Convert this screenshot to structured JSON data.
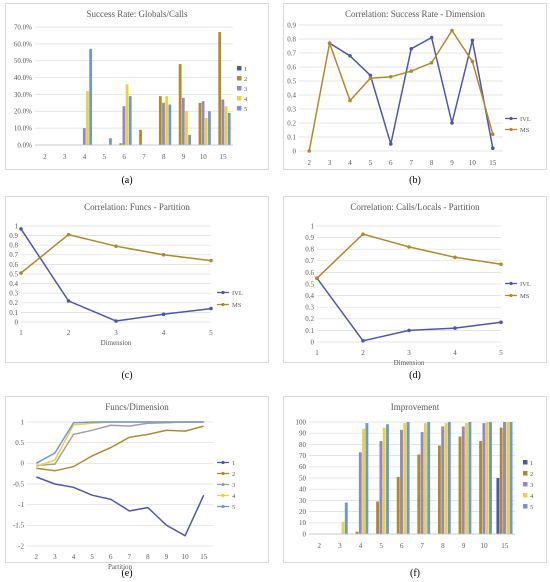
{
  "colors": {
    "s1": "#4f56b0",
    "s2": "#b08a2a",
    "s3": "#9487c4",
    "s4": "#e6d43a",
    "s5": "#6f96d6",
    "ivl": "#4f56b0",
    "ms": "#b08a2a",
    "lgreen": "#a8c26a",
    "cgray": "#a0a0a0"
  },
  "captions": [
    "(a)",
    "(b)",
    "(c)",
    "(d)",
    "(e)",
    "(f)"
  ],
  "chart_data": [
    {
      "id": "a",
      "type": "bar",
      "title": "Success Rate: Globals/Calls",
      "categories": [
        "2",
        "3",
        "4",
        "5",
        "6",
        "7",
        "8",
        "9",
        "10",
        "15"
      ],
      "ylim": [
        0,
        70
      ],
      "yticks": [
        "0.0%",
        "10.0%",
        "20.0%",
        "30.0%",
        "40.0%",
        "50.0%",
        "60.0%",
        "70.0%"
      ],
      "legend_position": "right",
      "series": [
        {
          "name": "1",
          "values": [
            0,
            0,
            0,
            0,
            0,
            0,
            0,
            0,
            0,
            0
          ]
        },
        {
          "name": "2",
          "values": [
            0,
            0,
            0,
            0,
            1,
            9,
            29,
            48,
            25,
            67
          ]
        },
        {
          "name": "3",
          "values": [
            0,
            0,
            10,
            0,
            23,
            0,
            25,
            28,
            26,
            27
          ]
        },
        {
          "name": "4",
          "values": [
            0,
            0,
            32,
            0,
            36,
            0,
            29,
            20,
            16,
            23
          ]
        },
        {
          "name": "5",
          "values": [
            0,
            0,
            57,
            4,
            29,
            0,
            24,
            6,
            20,
            19
          ]
        }
      ]
    },
    {
      "id": "b",
      "type": "line",
      "title": "Correlation: Success Rate - Dimension",
      "categories": [
        "2",
        "3",
        "4",
        "5",
        "6",
        "7",
        "8",
        "9",
        "10",
        "15"
      ],
      "ylim": [
        0,
        0.9
      ],
      "yticks": [
        "0",
        "0.1",
        "0.2",
        "0.3",
        "0.4",
        "0.5",
        "0.6",
        "0.7",
        "0.8",
        "0.9"
      ],
      "legend_position": "right",
      "series": [
        {
          "name": "IVL",
          "values": [
            null,
            0.77,
            0.68,
            0.54,
            0.05,
            0.73,
            0.81,
            0.2,
            0.79,
            0.02
          ]
        },
        {
          "name": "MS",
          "values": [
            0.0,
            0.77,
            0.36,
            0.52,
            0.53,
            0.57,
            0.63,
            0.86,
            0.64,
            0.12
          ]
        }
      ]
    },
    {
      "id": "c",
      "type": "line",
      "title": "Correlation: Funcs - Partition",
      "xlabel": "Dimension",
      "categories": [
        "1",
        "2",
        "3",
        "4",
        "5"
      ],
      "ylim": [
        0,
        1
      ],
      "yticks": [
        "0",
        "0.1",
        "0.2",
        "0.3",
        "0.4",
        "0.5",
        "0.6",
        "0.7",
        "0.8",
        "0.9",
        "1"
      ],
      "legend_position": "right",
      "series": [
        {
          "name": "IVL",
          "values": [
            0.97,
            0.22,
            0.01,
            0.08,
            0.14
          ]
        },
        {
          "name": "MS",
          "values": [
            0.51,
            0.91,
            0.79,
            0.7,
            0.64
          ]
        }
      ]
    },
    {
      "id": "d",
      "type": "line",
      "title": "Correlation: Calls/Locals - Partition",
      "xlabel": "Dimension",
      "categories": [
        "1",
        "2",
        "3",
        "4",
        "5"
      ],
      "ylim": [
        0,
        1
      ],
      "yticks": [
        "0",
        "0.1",
        "0.2",
        "0.3",
        "0.4",
        "0.5",
        "0.6",
        "0.7",
        "0.8",
        "0.9",
        "1"
      ],
      "legend_position": "right",
      "series": [
        {
          "name": "IVL",
          "values": [
            0.55,
            0.01,
            0.1,
            0.12,
            0.17
          ]
        },
        {
          "name": "MS",
          "values": [
            0.55,
            0.93,
            0.82,
            0.73,
            0.67
          ]
        }
      ]
    },
    {
      "id": "e",
      "type": "line",
      "title": "Funcs/Dimension",
      "xlabel": "Partition",
      "categories": [
        "2",
        "3",
        "4",
        "5",
        "6",
        "7",
        "8",
        "9",
        "10",
        "15"
      ],
      "ylim": [
        -2,
        1
      ],
      "yticks": [
        "-2",
        "-1.5",
        "-1",
        "-0.5",
        "0",
        "0.5",
        "1"
      ],
      "legend_position": "right",
      "series": [
        {
          "name": "1",
          "values": [
            -0.33,
            -0.5,
            -0.58,
            -0.77,
            -0.87,
            -1.15,
            -1.07,
            -1.5,
            -1.75,
            -0.77
          ]
        },
        {
          "name": "2",
          "values": [
            -0.12,
            -0.18,
            -0.08,
            0.18,
            0.38,
            0.63,
            0.7,
            0.8,
            0.78,
            0.9
          ]
        },
        {
          "name": "3",
          "values": [
            -0.05,
            -0.02,
            0.7,
            0.8,
            0.92,
            0.9,
            0.97,
            0.98,
            1.0,
            1.0
          ]
        },
        {
          "name": "4",
          "values": [
            -0.08,
            0.08,
            0.93,
            0.97,
            1.0,
            1.0,
            1.0,
            1.0,
            1.0,
            1.0
          ]
        },
        {
          "name": "5",
          "values": [
            0.0,
            0.25,
            0.98,
            1.0,
            1.0,
            1.0,
            1.0,
            1.0,
            1.0,
            1.0
          ]
        }
      ]
    },
    {
      "id": "f",
      "type": "bar",
      "title": "Improvement",
      "categories": [
        "2",
        "3",
        "4",
        "5",
        "6",
        "7",
        "8",
        "9",
        "10",
        "15"
      ],
      "ylim": [
        0,
        100
      ],
      "yticks": [
        "0",
        "10",
        "20",
        "30",
        "40",
        "50",
        "60",
        "70",
        "80",
        "90",
        "100"
      ],
      "legend_position": "right",
      "series": [
        {
          "name": "1",
          "values": [
            0,
            0,
            0,
            0,
            0,
            0,
            0,
            0,
            0,
            50
          ]
        },
        {
          "name": "2",
          "values": [
            0,
            0,
            2,
            29,
            51,
            71,
            79,
            87,
            83,
            95
          ]
        },
        {
          "name": "3",
          "values": [
            0,
            0,
            73,
            83,
            93,
            91,
            96,
            96,
            99,
            100
          ]
        },
        {
          "name": "4",
          "values": [
            0,
            11,
            94,
            95,
            99,
            99,
            99,
            99,
            100,
            100
          ]
        },
        {
          "name": "5",
          "values": [
            0,
            28,
            99,
            98,
            100,
            100,
            100,
            100,
            100,
            100
          ]
        }
      ]
    }
  ]
}
